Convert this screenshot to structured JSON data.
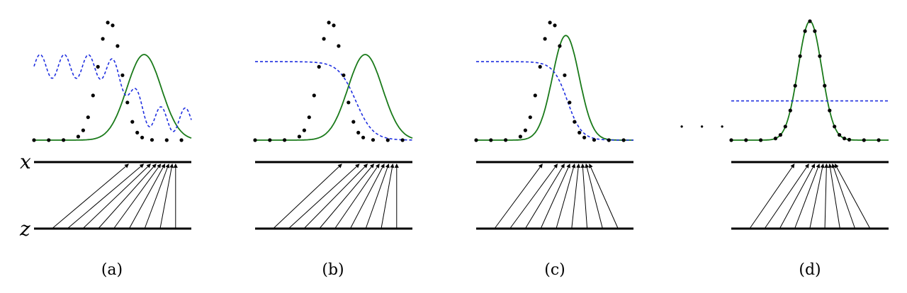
{
  "axes": {
    "x_label": "x",
    "z_label": "z"
  },
  "ellipsis": "· · ·",
  "colors": {
    "data_points": "#000000",
    "generator": "#1a7a1a",
    "discriminator": "#1f2fe0",
    "axis": "#000000"
  },
  "panels": [
    {
      "label": "(a)",
      "data_mean": 0.48,
      "gen_mean": 0.7,
      "gen_sigma": 0.11,
      "gen_peak": 0.72,
      "disc": {
        "type": "wavy",
        "base": 0.62,
        "drop": 0.45,
        "center": 0.62,
        "amp": 0.1,
        "freq": 13
      },
      "map": {
        "z_start": 0.12,
        "z_end": 0.9,
        "x_start": 0.6,
        "x_end": 0.9,
        "gamma": 0.55
      }
    },
    {
      "label": "(b)",
      "data_mean": 0.48,
      "gen_mean": 0.7,
      "gen_sigma": 0.11,
      "gen_peak": 0.72,
      "disc": {
        "type": "sigmoid",
        "high": 0.66,
        "low": 0.0,
        "center": 0.64,
        "width": 0.055
      },
      "map": {
        "z_start": 0.12,
        "z_end": 0.9,
        "x_start": 0.55,
        "x_end": 0.9,
        "gamma": 0.55
      }
    },
    {
      "label": "(c)",
      "data_mean": 0.48,
      "gen_mean": 0.57,
      "gen_sigma": 0.085,
      "gen_peak": 0.88,
      "disc": {
        "type": "sigmoid",
        "high": 0.66,
        "low": 0.0,
        "center": 0.58,
        "width": 0.045
      },
      "map": {
        "z_start": 0.12,
        "z_end": 0.9,
        "x_start": 0.42,
        "x_end": 0.72,
        "gamma": 0.55
      }
    },
    {
      "label": "(d)",
      "data_mean": 0.5,
      "gen_mean": 0.5,
      "gen_sigma": 0.075,
      "gen_peak": 1.0,
      "disc": {
        "type": "flat",
        "level": 0.33
      },
      "map": {
        "z_start": 0.12,
        "z_end": 0.88,
        "x_start": 0.4,
        "x_end": 0.66,
        "gamma": 0.5
      }
    }
  ]
}
